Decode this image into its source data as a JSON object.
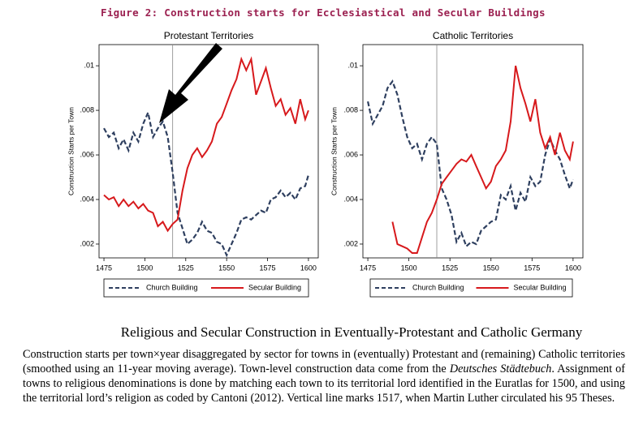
{
  "figure_title": "Figure 2:  Construction starts for Ecclesiastical and Secular Buildings",
  "caption_title": "Religious and Secular Construction in Eventually-Protestant and Catholic Germany",
  "caption_parts": [
    "Construction starts per town×year disaggregated by sector for towns in (eventually) Protestant and (remaining) Catholic territories (smoothed using an 11-year moving average). Town-level construction data come from the ",
    "Deutsches Städtebuch",
    ". Assignment of towns to religious denominations is done by matching each town to its territorial lord identified in the Euratlas for 1500, and using the territorial lord’s religion as coded by Cantoni (2012). Vertical line marks 1517, when Martin Luther circulated his 95 Theses."
  ],
  "chart_data": [
    {
      "type": "line",
      "title": "Protestant Territories",
      "y_label": "Construction Starts per Town",
      "x": [
        1475,
        1478,
        1481,
        1484,
        1487,
        1490,
        1493,
        1496,
        1499,
        1502,
        1505,
        1508,
        1511,
        1514,
        1517,
        1520,
        1523,
        1526,
        1529,
        1532,
        1535,
        1538,
        1541,
        1544,
        1547,
        1550,
        1553,
        1556,
        1559,
        1562,
        1565,
        1568,
        1571,
        1574,
        1577,
        1580,
        1583,
        1586,
        1589,
        1592,
        1595,
        1598,
        1600
      ],
      "series": [
        {
          "name": "Church Building",
          "color": "#2e3f5f",
          "dash": true,
          "values": [
            0.0072,
            0.0068,
            0.007,
            0.0063,
            0.0067,
            0.0062,
            0.007,
            0.0066,
            0.0074,
            0.0079,
            0.0068,
            0.0072,
            0.0075,
            0.0068,
            0.0052,
            0.0034,
            0.0027,
            0.002,
            0.0022,
            0.0025,
            0.003,
            0.0026,
            0.0025,
            0.0021,
            0.002,
            0.0015,
            0.002,
            0.0025,
            0.0031,
            0.0032,
            0.0031,
            0.0033,
            0.0035,
            0.0034,
            0.004,
            0.0041,
            0.0044,
            0.0041,
            0.0043,
            0.004,
            0.0045,
            0.0046,
            0.0051
          ]
        },
        {
          "name": "Secular Building",
          "color": "#d7191c",
          "dash": false,
          "values": [
            0.0042,
            0.004,
            0.0041,
            0.0037,
            0.004,
            0.0037,
            0.0039,
            0.0036,
            0.0038,
            0.0035,
            0.0034,
            0.0028,
            0.003,
            0.0026,
            0.0029,
            0.0031,
            0.0044,
            0.0054,
            0.006,
            0.0063,
            0.0059,
            0.0062,
            0.0066,
            0.0074,
            0.0077,
            0.0083,
            0.0089,
            0.0094,
            0.0103,
            0.0098,
            0.0103,
            0.0087,
            0.0093,
            0.0099,
            0.009,
            0.0082,
            0.0085,
            0.0078,
            0.0081,
            0.0074,
            0.0085,
            0.0076,
            0.008
          ]
        }
      ],
      "xlim": [
        1472,
        1606
      ],
      "xticks": [
        1475,
        1500,
        1525,
        1550,
        1575,
        1600
      ],
      "ylim": [
        0.00138,
        0.01095
      ],
      "yticks": [
        {
          "value": 0.002,
          "label": ".002"
        },
        {
          "value": 0.004,
          "label": ".004"
        },
        {
          "value": 0.006,
          "label": ".006"
        },
        {
          "value": 0.008,
          "label": ".008"
        },
        {
          "value": 0.01,
          "label": ".01"
        }
      ],
      "vline": 1517
    },
    {
      "type": "line",
      "title": "Catholic Territories",
      "y_label": "Construction Starts per Town",
      "x": [
        1475,
        1478,
        1481,
        1484,
        1487,
        1490,
        1493,
        1496,
        1499,
        1502,
        1505,
        1508,
        1511,
        1514,
        1517,
        1520,
        1523,
        1526,
        1529,
        1532,
        1535,
        1538,
        1541,
        1544,
        1547,
        1550,
        1553,
        1556,
        1559,
        1562,
        1565,
        1568,
        1571,
        1574,
        1577,
        1580,
        1583,
        1586,
        1589,
        1592,
        1595,
        1598,
        1600
      ],
      "series": [
        {
          "name": "Church Building",
          "color": "#2e3f5f",
          "dash": true,
          "values": [
            0.0084,
            0.0074,
            0.0078,
            0.0082,
            0.009,
            0.0093,
            0.0087,
            0.0077,
            0.0068,
            0.0063,
            0.0065,
            0.0058,
            0.0065,
            0.0068,
            0.0065,
            0.0045,
            0.004,
            0.0033,
            0.0021,
            0.0025,
            0.0019,
            0.0021,
            0.002,
            0.0026,
            0.0028,
            0.003,
            0.0031,
            0.0042,
            0.004,
            0.0046,
            0.0035,
            0.0043,
            0.0039,
            0.005,
            0.0046,
            0.0048,
            0.006,
            0.0067,
            0.0062,
            0.0058,
            0.0051,
            0.0045,
            0.0049
          ]
        },
        {
          "name": "Secular Building",
          "color": "#d7191c",
          "dash": false,
          "values": [
            null,
            null,
            null,
            null,
            null,
            0.003,
            0.002,
            0.0019,
            0.0018,
            0.0016,
            0.0016,
            0.0023,
            0.003,
            0.0034,
            0.004,
            0.0047,
            0.005,
            0.0053,
            0.0056,
            0.0058,
            0.0057,
            0.006,
            0.0055,
            0.005,
            0.0045,
            0.0048,
            0.0055,
            0.0058,
            0.0062,
            0.0075,
            0.01,
            0.009,
            0.0083,
            0.0075,
            0.0085,
            0.007,
            0.0063,
            0.0068,
            0.006,
            0.007,
            0.0062,
            0.0058,
            0.0066
          ]
        }
      ],
      "xlim": [
        1472,
        1606
      ],
      "xticks": [
        1475,
        1500,
        1525,
        1550,
        1575,
        1600
      ],
      "ylim": [
        0.00138,
        0.01095
      ],
      "yticks": [
        {
          "value": 0.002,
          "label": ".002"
        },
        {
          "value": 0.004,
          "label": ".004"
        },
        {
          "value": 0.006,
          "label": ".006"
        },
        {
          "value": 0.008,
          "label": ".008"
        },
        {
          "value": 0.01,
          "label": ".01"
        }
      ],
      "vline": 1517
    }
  ]
}
